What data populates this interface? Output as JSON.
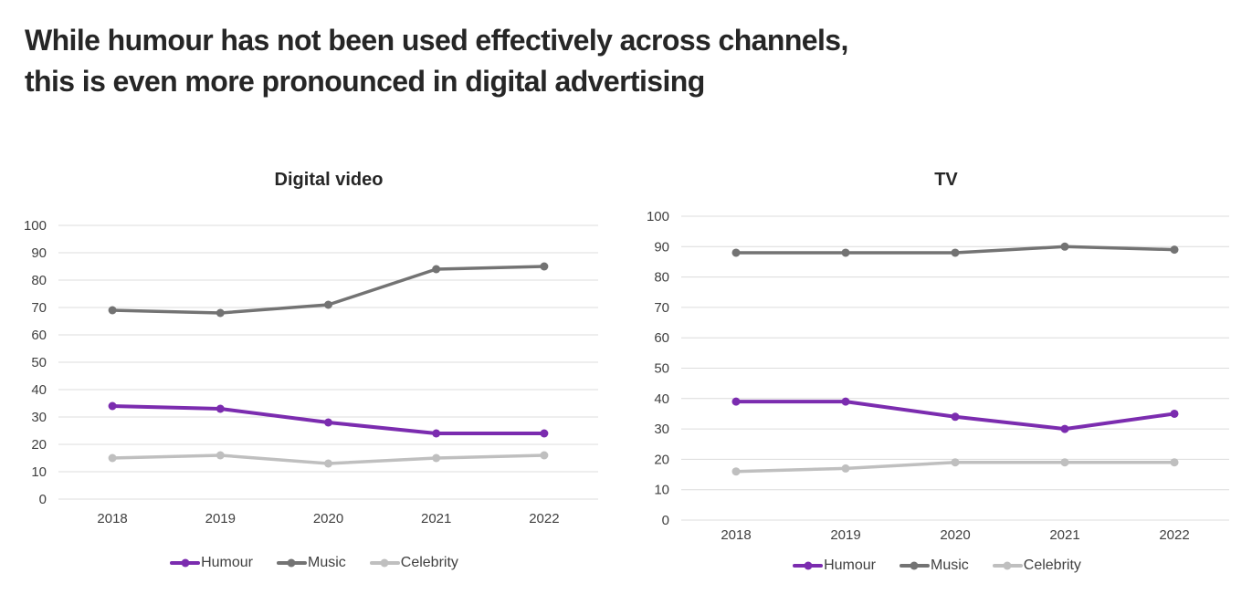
{
  "page": {
    "title_line1": "While humour has not been used effectively across channels,",
    "title_line2": "this is even more pronounced in digital advertising"
  },
  "colors": {
    "humour": "#7B2CAF",
    "music": "#737373",
    "celebrity": "#BFBFBF",
    "grid": "#DCDCDC",
    "axis_text": "#404040",
    "title_text": "#262626"
  },
  "chart_data": [
    {
      "type": "line",
      "title": "Digital video",
      "categories": [
        "2018",
        "2019",
        "2020",
        "2021",
        "2022"
      ],
      "series": [
        {
          "name": "Humour",
          "color": "#7B2CAF",
          "values": [
            34,
            33,
            28,
            24,
            24
          ]
        },
        {
          "name": "Music",
          "color": "#737373",
          "values": [
            69,
            68,
            71,
            84,
            85
          ]
        },
        {
          "name": "Celebrity",
          "color": "#BFBFBF",
          "values": [
            15,
            16,
            13,
            15,
            16
          ]
        }
      ],
      "xlabel": "",
      "ylabel": "",
      "ylim": [
        0,
        100
      ],
      "ytick": 10,
      "grid": true,
      "legend_position": "bottom"
    },
    {
      "type": "line",
      "title": "TV",
      "categories": [
        "2018",
        "2019",
        "2020",
        "2021",
        "2022"
      ],
      "series": [
        {
          "name": "Humour",
          "color": "#7B2CAF",
          "values": [
            39,
            39,
            34,
            30,
            35
          ]
        },
        {
          "name": "Music",
          "color": "#737373",
          "values": [
            88,
            88,
            88,
            90,
            89
          ]
        },
        {
          "name": "Celebrity",
          "color": "#BFBFBF",
          "values": [
            16,
            17,
            19,
            19,
            19
          ]
        }
      ],
      "xlabel": "",
      "ylabel": "",
      "ylim": [
        0,
        100
      ],
      "ytick": 10,
      "grid": true,
      "legend_position": "bottom"
    }
  ]
}
